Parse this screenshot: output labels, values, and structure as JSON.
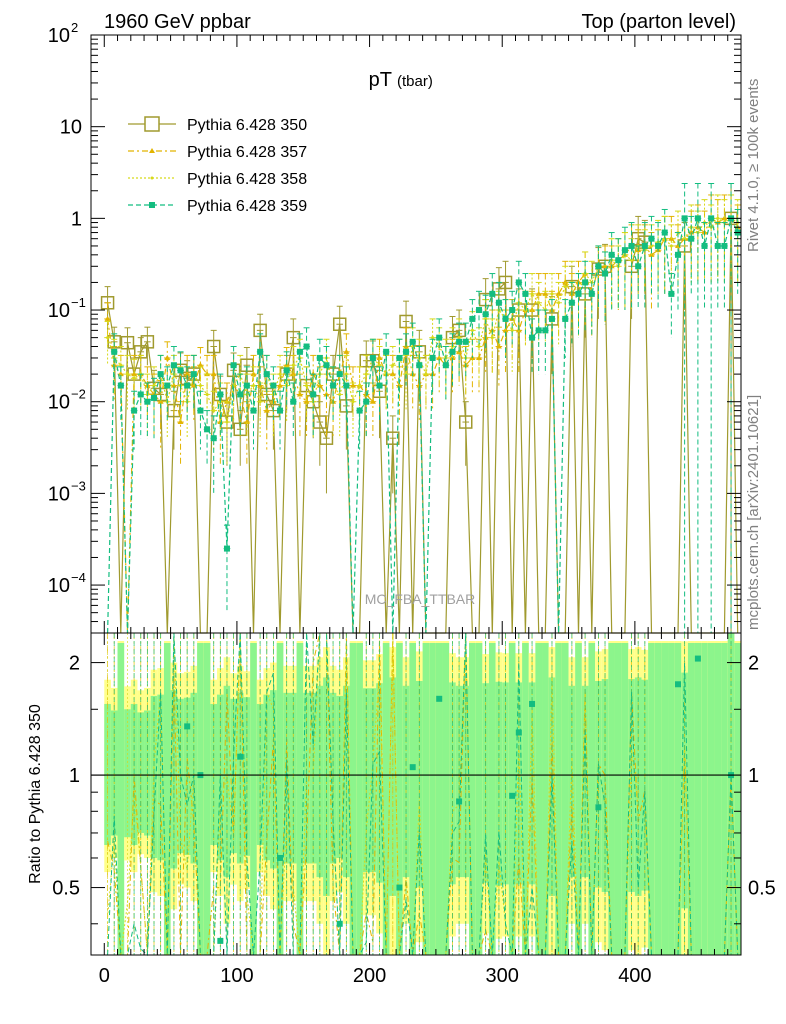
{
  "header": {
    "left": "1960 GeV ppbar",
    "right": "Top (parton level)"
  },
  "side_labels": {
    "rivet": "Rivet 4.1.0, ≥ 100k events",
    "mcplots": "mcplots.cern.ch [arXiv:2401.10621]"
  },
  "watermark": "MC_FBA_TTBAR",
  "colors": {
    "s350": "#a09a2e",
    "s357": "#e2b400",
    "s358": "#d7d91a",
    "s359": "#13bd80",
    "band_yellow": "#ffff8a",
    "band_green": "#8cf58c"
  },
  "chart_data": [
    {
      "type": "line",
      "title": "pT",
      "title_sub": "(tbar)",
      "yscale": "log",
      "xlim": [
        -10,
        480
      ],
      "ylim": [
        3e-05,
        100
      ],
      "yticks": [
        {
          "v": 100,
          "base": "10",
          "exp": "2"
        },
        {
          "v": 10,
          "base": "10",
          "exp": ""
        },
        {
          "v": 1,
          "base": "1",
          "exp": ""
        },
        {
          "v": 0.1,
          "base": "10",
          "exp": "−1"
        },
        {
          "v": 0.01,
          "base": "10",
          "exp": "−2"
        },
        {
          "v": 0.001,
          "base": "10",
          "exp": "−3"
        },
        {
          "v": 0.0001,
          "base": "10",
          "exp": "−4"
        }
      ],
      "x": [
        2.5,
        7.5,
        12.5,
        17.5,
        22.5,
        27.5,
        32.5,
        37.5,
        42.5,
        47.5,
        52.5,
        57.5,
        62.5,
        67.5,
        72.5,
        77.5,
        82.5,
        87.5,
        92.5,
        97.5,
        102.5,
        107.5,
        112.5,
        117.5,
        122.5,
        127.5,
        132.5,
        137.5,
        142.5,
        147.5,
        152.5,
        157.5,
        162.5,
        167.5,
        172.5,
        177.5,
        182.5,
        187.5,
        192.5,
        197.5,
        202.5,
        207.5,
        212.5,
        217.5,
        222.5,
        227.5,
        232.5,
        237.5,
        242.5,
        247.5,
        252.5,
        257.5,
        262.5,
        267.5,
        272.5,
        277.5,
        282.5,
        287.5,
        292.5,
        297.5,
        302.5,
        307.5,
        312.5,
        317.5,
        322.5,
        327.5,
        332.5,
        337.5,
        342.5,
        347.5,
        352.5,
        357.5,
        362.5,
        367.5,
        372.5,
        377.5,
        382.5,
        387.5,
        392.5,
        397.5,
        402.5,
        407.5,
        412.5,
        417.5,
        422.5,
        427.5,
        432.5,
        437.5,
        442.5,
        447.5,
        452.5,
        457.5,
        462.5,
        467.5,
        472.5,
        477.5
      ],
      "series": [
        {
          "name": "Pythia 6.428 350",
          "marker": "open-square",
          "dash": "",
          "values": [
            0.12,
            0.045,
            0,
            0.044,
            0.02,
            0.035,
            0.045,
            0.014,
            0.012,
            0,
            0.008,
            0.022,
            0.018,
            0.02,
            0,
            0,
            0.04,
            0.012,
            0.006,
            0.022,
            0.005,
            0.025,
            0,
            0.06,
            0.012,
            0.008,
            0,
            0.02,
            0.05,
            0,
            0.015,
            0.01,
            0.006,
            0.004,
            0.02,
            0.07,
            0.009,
            0,
            0,
            0.028,
            0.028,
            0.013,
            0,
            0.004,
            0,
            0.075,
            0,
            0.035,
            0,
            0,
            0,
            0,
            0.05,
            0.06,
            0.006,
            0,
            0,
            0.13,
            0,
            0.17,
            0.2,
            0,
            0.1,
            0,
            0.1,
            0,
            0,
            0.08,
            0,
            0,
            0.18,
            0,
            0.15,
            0,
            0.28,
            0.3,
            0,
            0,
            0,
            0.3,
            0.6,
            0.55,
            0,
            0,
            0,
            0,
            0,
            0.5,
            0,
            0,
            0,
            0,
            0,
            0,
            1.0,
            0
          ],
          "errors": [
            0.06,
            0.02,
            0,
            0.02,
            0.01,
            0.015,
            0.02,
            0.008,
            0.007,
            0,
            0.005,
            0.012,
            0.01,
            0.012,
            0,
            0,
            0.02,
            0.007,
            0.004,
            0.012,
            0.003,
            0.014,
            0,
            0.03,
            0.007,
            0.005,
            0,
            0.012,
            0.03,
            0,
            0.009,
            0.006,
            0.004,
            0.003,
            0.012,
            0.04,
            0.006,
            0,
            0,
            0.018,
            0.018,
            0.009,
            0,
            0.003,
            0,
            0.05,
            0,
            0.025,
            0,
            0,
            0,
            0,
            0.035,
            0.04,
            0.004,
            0,
            0,
            0.09,
            0,
            0.12,
            0.14,
            0,
            0.07,
            0,
            0.07,
            0,
            0,
            0.06,
            0,
            0,
            0.12,
            0,
            0.1,
            0,
            0.2,
            0.22,
            0,
            0,
            0,
            0.22,
            0.45,
            0.4,
            0,
            0,
            0,
            0,
            0,
            0.4,
            0,
            0,
            0,
            0,
            0,
            0,
            1.4,
            0
          ]
        },
        {
          "name": "Pythia 6.428 357",
          "marker": "triangle",
          "dash": "6,3,2,3",
          "values": [
            0.08,
            0.025,
            0.02,
            0,
            0.02,
            0.02,
            0.015,
            0.012,
            0.01,
            0.03,
            0.015,
            0.006,
            0.02,
            0.015,
            0.025,
            0.02,
            0.02,
            0.006,
            0.01,
            0.015,
            0.012,
            0.006,
            0.02,
            0.015,
            0.008,
            0.01,
            0.015,
            0.025,
            0.02,
            0.012,
            0.01,
            0.02,
            0.015,
            0.012,
            0.01,
            0.02,
            0.035,
            0.015,
            0.015,
            0.012,
            0.01,
            0.03,
            0.02,
            0.02,
            0.015,
            0.04,
            0.02,
            0.015,
            0.02,
            0.02,
            0.03,
            0.025,
            0.03,
            0.035,
            0.025,
            0.03,
            0.03,
            0.05,
            0.06,
            0.04,
            0.06,
            0.08,
            0.06,
            0.1,
            0.1,
            0.15,
            0.15,
            0.1,
            0.15,
            0.2,
            0.15,
            0.2,
            0.25,
            0.15,
            0.3,
            0.3,
            0.3,
            0.35,
            0.4,
            0.5,
            0.45,
            0.5,
            0.4,
            0.45,
            0.6,
            0.6,
            0.5,
            0.6,
            0.7,
            0.8,
            0.7,
            1.0,
            0.9,
            1.0,
            1.0,
            0.8
          ],
          "errors": [
            0.04,
            0.015,
            0.012,
            0,
            0.012,
            0.012,
            0.009,
            0.008,
            0.007,
            0.015,
            0.009,
            0.004,
            0.012,
            0.009,
            0.014,
            0.012,
            0.012,
            0.004,
            0.006,
            0.009,
            0.008,
            0.004,
            0.012,
            0.009,
            0.005,
            0.006,
            0.009,
            0.014,
            0.012,
            0.008,
            0.006,
            0.012,
            0.009,
            0.008,
            0.006,
            0.012,
            0.02,
            0.009,
            0.009,
            0.008,
            0.006,
            0.018,
            0.012,
            0.012,
            0.009,
            0.024,
            0.012,
            0.009,
            0.012,
            0.012,
            0.018,
            0.015,
            0.018,
            0.02,
            0.015,
            0.018,
            0.018,
            0.03,
            0.04,
            0.025,
            0.04,
            0.05,
            0.04,
            0.06,
            0.06,
            0.1,
            0.1,
            0.06,
            0.1,
            0.14,
            0.1,
            0.14,
            0.18,
            0.1,
            0.2,
            0.2,
            0.2,
            0.25,
            0.3,
            0.35,
            0.3,
            0.35,
            0.3,
            0.3,
            0.45,
            0.45,
            0.35,
            0.45,
            0.5,
            0.6,
            0.5,
            0.8,
            0.7,
            0.8,
            0.8,
            0.6
          ]
        },
        {
          "name": "Pythia 6.428 358",
          "marker": "dot",
          "dash": "2,2",
          "values": [
            0.05,
            0.03,
            0.025,
            0.02,
            0.018,
            0.02,
            0.012,
            0.015,
            0.02,
            0.01,
            0.02,
            0.015,
            0.01,
            0.02,
            0.015,
            0.012,
            0.008,
            0.01,
            0.006,
            0.015,
            0.02,
            0.012,
            0.015,
            0.01,
            0.02,
            0.012,
            0.02,
            0.015,
            0.025,
            0.03,
            0.015,
            0.01,
            0.02,
            0.03,
            0.015,
            0.012,
            0.02,
            0.01,
            0.015,
            0.02,
            0.03,
            0.025,
            0.02,
            0.025,
            0.03,
            0.02,
            0.04,
            0.03,
            0.02,
            0.05,
            0.04,
            0.03,
            0.04,
            0.05,
            0.03,
            0.06,
            0.04,
            0.08,
            0.05,
            0.1,
            0.08,
            0.06,
            0.12,
            0.1,
            0.15,
            0.12,
            0.1,
            0.15,
            0.12,
            0.18,
            0.2,
            0.15,
            0.25,
            0.2,
            0.3,
            0.25,
            0.35,
            0.3,
            0.4,
            0.35,
            0.5,
            0.45,
            0.5,
            0.55,
            0.6,
            0.5,
            0.7,
            0.6,
            0.8,
            0.7,
            0.9,
            0.8,
            1.0,
            0.9,
            1.0,
            0.9
          ],
          "errors": [
            0.025,
            0.018,
            0.015,
            0.012,
            0.011,
            0.012,
            0.008,
            0.009,
            0.012,
            0.006,
            0.012,
            0.009,
            0.006,
            0.012,
            0.009,
            0.008,
            0.005,
            0.006,
            0.004,
            0.009,
            0.012,
            0.008,
            0.009,
            0.006,
            0.012,
            0.008,
            0.012,
            0.009,
            0.015,
            0.018,
            0.009,
            0.006,
            0.012,
            0.018,
            0.009,
            0.008,
            0.012,
            0.006,
            0.009,
            0.012,
            0.018,
            0.015,
            0.012,
            0.015,
            0.018,
            0.012,
            0.024,
            0.018,
            0.012,
            0.03,
            0.024,
            0.018,
            0.024,
            0.03,
            0.018,
            0.036,
            0.024,
            0.05,
            0.03,
            0.06,
            0.05,
            0.04,
            0.08,
            0.06,
            0.1,
            0.08,
            0.06,
            0.1,
            0.08,
            0.12,
            0.14,
            0.1,
            0.18,
            0.14,
            0.2,
            0.18,
            0.25,
            0.2,
            0.3,
            0.25,
            0.35,
            0.3,
            0.35,
            0.4,
            0.45,
            0.35,
            0.5,
            0.45,
            0.6,
            0.5,
            0.7,
            0.6,
            0.8,
            0.7,
            0.8,
            0.7
          ]
        },
        {
          "name": "Pythia 6.428 359",
          "marker": "filled-square",
          "dash": "5,3",
          "values": [
            0,
            0.035,
            0.015,
            0,
            0.008,
            0.012,
            0.01,
            0.011,
            0.02,
            0.015,
            0.025,
            0.022,
            0.015,
            0.02,
            0.008,
            0.005,
            0.004,
            0.012,
            0.00025,
            0.025,
            0.012,
            0.015,
            0.008,
            0.035,
            0.02,
            0.015,
            0.008,
            0.022,
            0.01,
            0.035,
            0.04,
            0.012,
            0.03,
            0.025,
            0.015,
            0.02,
            0.015,
            0,
            0.008,
            0.01,
            0.03,
            0.015,
            0.035,
            0,
            0.03,
            0.035,
            0.045,
            0.025,
            0,
            0.03,
            0.05,
            0.025,
            0.035,
            0.045,
            0.045,
            0.08,
            0.1,
            0.09,
            0.15,
            0.12,
            0.08,
            0.1,
            0.2,
            0.15,
            0.05,
            0.06,
            0.06,
            0.08,
            0,
            0.08,
            0.12,
            0.15,
            0.2,
            0.15,
            0.3,
            0.25,
            0.4,
            0.35,
            0.45,
            0.5,
            0.3,
            0.5,
            0.6,
            0.5,
            0.7,
            0.15,
            0.4,
            1.0,
            0.6,
            1.0,
            0.5,
            1.0,
            0.5,
            0.5,
            1.0,
            0.7
          ],
          "errors": [
            0,
            0.02,
            0.009,
            0,
            0.005,
            0.008,
            0.006,
            0.007,
            0.012,
            0.009,
            0.015,
            0.013,
            0.009,
            0.012,
            0.005,
            0.003,
            0.003,
            0.008,
            0.0002,
            0.015,
            0.008,
            0.009,
            0.005,
            0.02,
            0.012,
            0.009,
            0.005,
            0.013,
            0.006,
            0.02,
            0.024,
            0.008,
            0.018,
            0.015,
            0.009,
            0.012,
            0.009,
            0,
            0.005,
            0.006,
            0.018,
            0.009,
            0.02,
            0,
            0.018,
            0.02,
            0.027,
            0.015,
            0,
            0.018,
            0.03,
            0.015,
            0.02,
            0.027,
            0.027,
            0.05,
            0.06,
            0.055,
            0.1,
            0.08,
            0.05,
            0.06,
            0.14,
            0.1,
            0.03,
            0.04,
            0.04,
            0.05,
            0,
            0.05,
            0.08,
            0.1,
            0.14,
            0.1,
            0.2,
            0.18,
            0.3,
            0.25,
            0.35,
            0.4,
            0.2,
            0.4,
            0.45,
            0.4,
            0.55,
            0.1,
            0.3,
            1.4,
            0.45,
            1.4,
            0.4,
            1.4,
            0.4,
            0.4,
            1.4,
            0.55
          ]
        }
      ]
    },
    {
      "type": "line",
      "title": "ratio",
      "ylabel": "Ratio to Pythia 6.428 350",
      "xlabel": "",
      "xlim": [
        -10,
        480
      ],
      "ylim": [
        0.33,
        2.4
      ],
      "yscale": "log",
      "xticks": [
        0,
        100,
        200,
        300,
        400
      ],
      "yticks": [
        0.5,
        1,
        2
      ],
      "reference": 1,
      "ratio_points_359": [
        {
          "x": 62.5,
          "y": 1.35
        },
        {
          "x": 72.5,
          "y": 1.0
        },
        {
          "x": 87.5,
          "y": 0.36
        },
        {
          "x": 102.5,
          "y": 1.12
        },
        {
          "x": 132.5,
          "y": 0.6
        },
        {
          "x": 177.5,
          "y": 0.4
        },
        {
          "x": 222.5,
          "y": 0.5
        },
        {
          "x": 232.5,
          "y": 1.05
        },
        {
          "x": 252.5,
          "y": 1.6
        },
        {
          "x": 267.5,
          "y": 0.85
        },
        {
          "x": 307.5,
          "y": 0.88
        },
        {
          "x": 312.5,
          "y": 1.3
        },
        {
          "x": 322.5,
          "y": 1.55
        },
        {
          "x": 372.5,
          "y": 0.82
        },
        {
          "x": 432.5,
          "y": 1.75
        },
        {
          "x": 447.5,
          "y": 2.05
        },
        {
          "x": 472.5,
          "y": 1.0
        }
      ]
    }
  ]
}
